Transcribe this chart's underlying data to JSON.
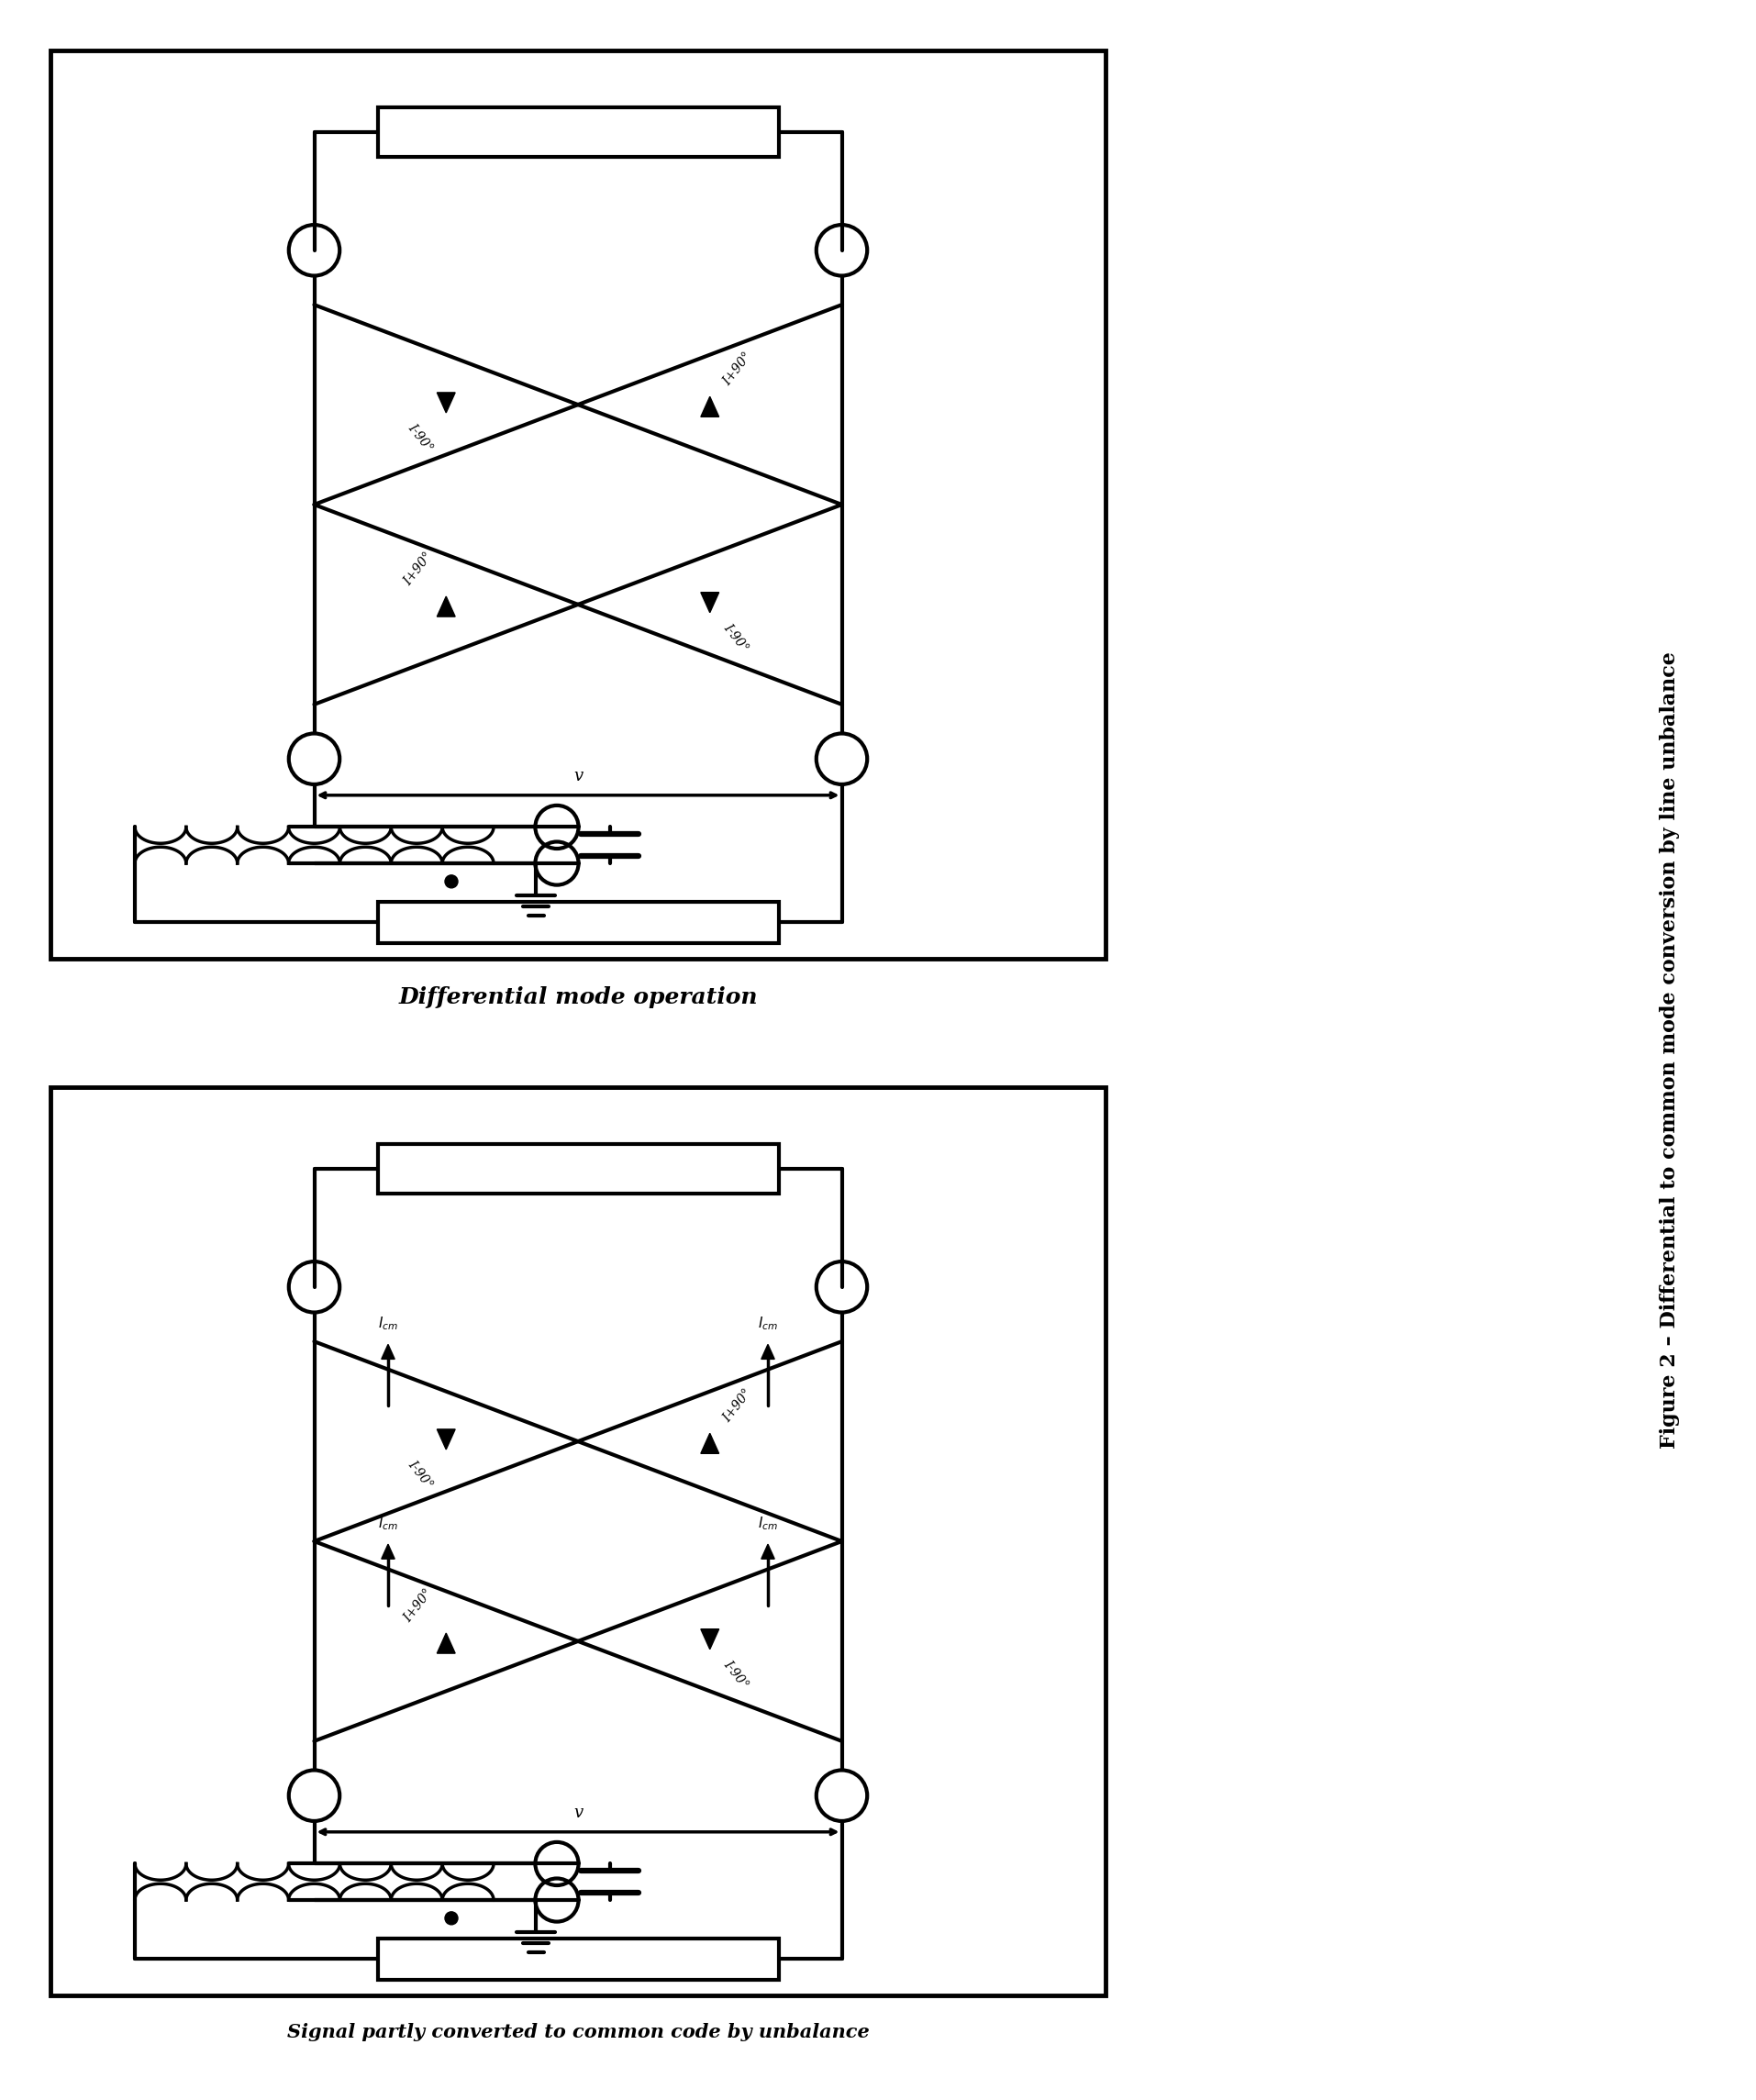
{
  "fig_width": 19.14,
  "fig_height": 22.89,
  "bg_color": "#ffffff",
  "line_color": "#000000",
  "lw": 3.0,
  "panel1_label": "Differential mode operation",
  "panel2_label": "Signal partly converted to common code by unbalance",
  "fig_caption": "Figure 2 – Differential to common mode conversion by line unbalance",
  "label1_fs": 18,
  "label2_fs": 15,
  "caption_fs": 16
}
